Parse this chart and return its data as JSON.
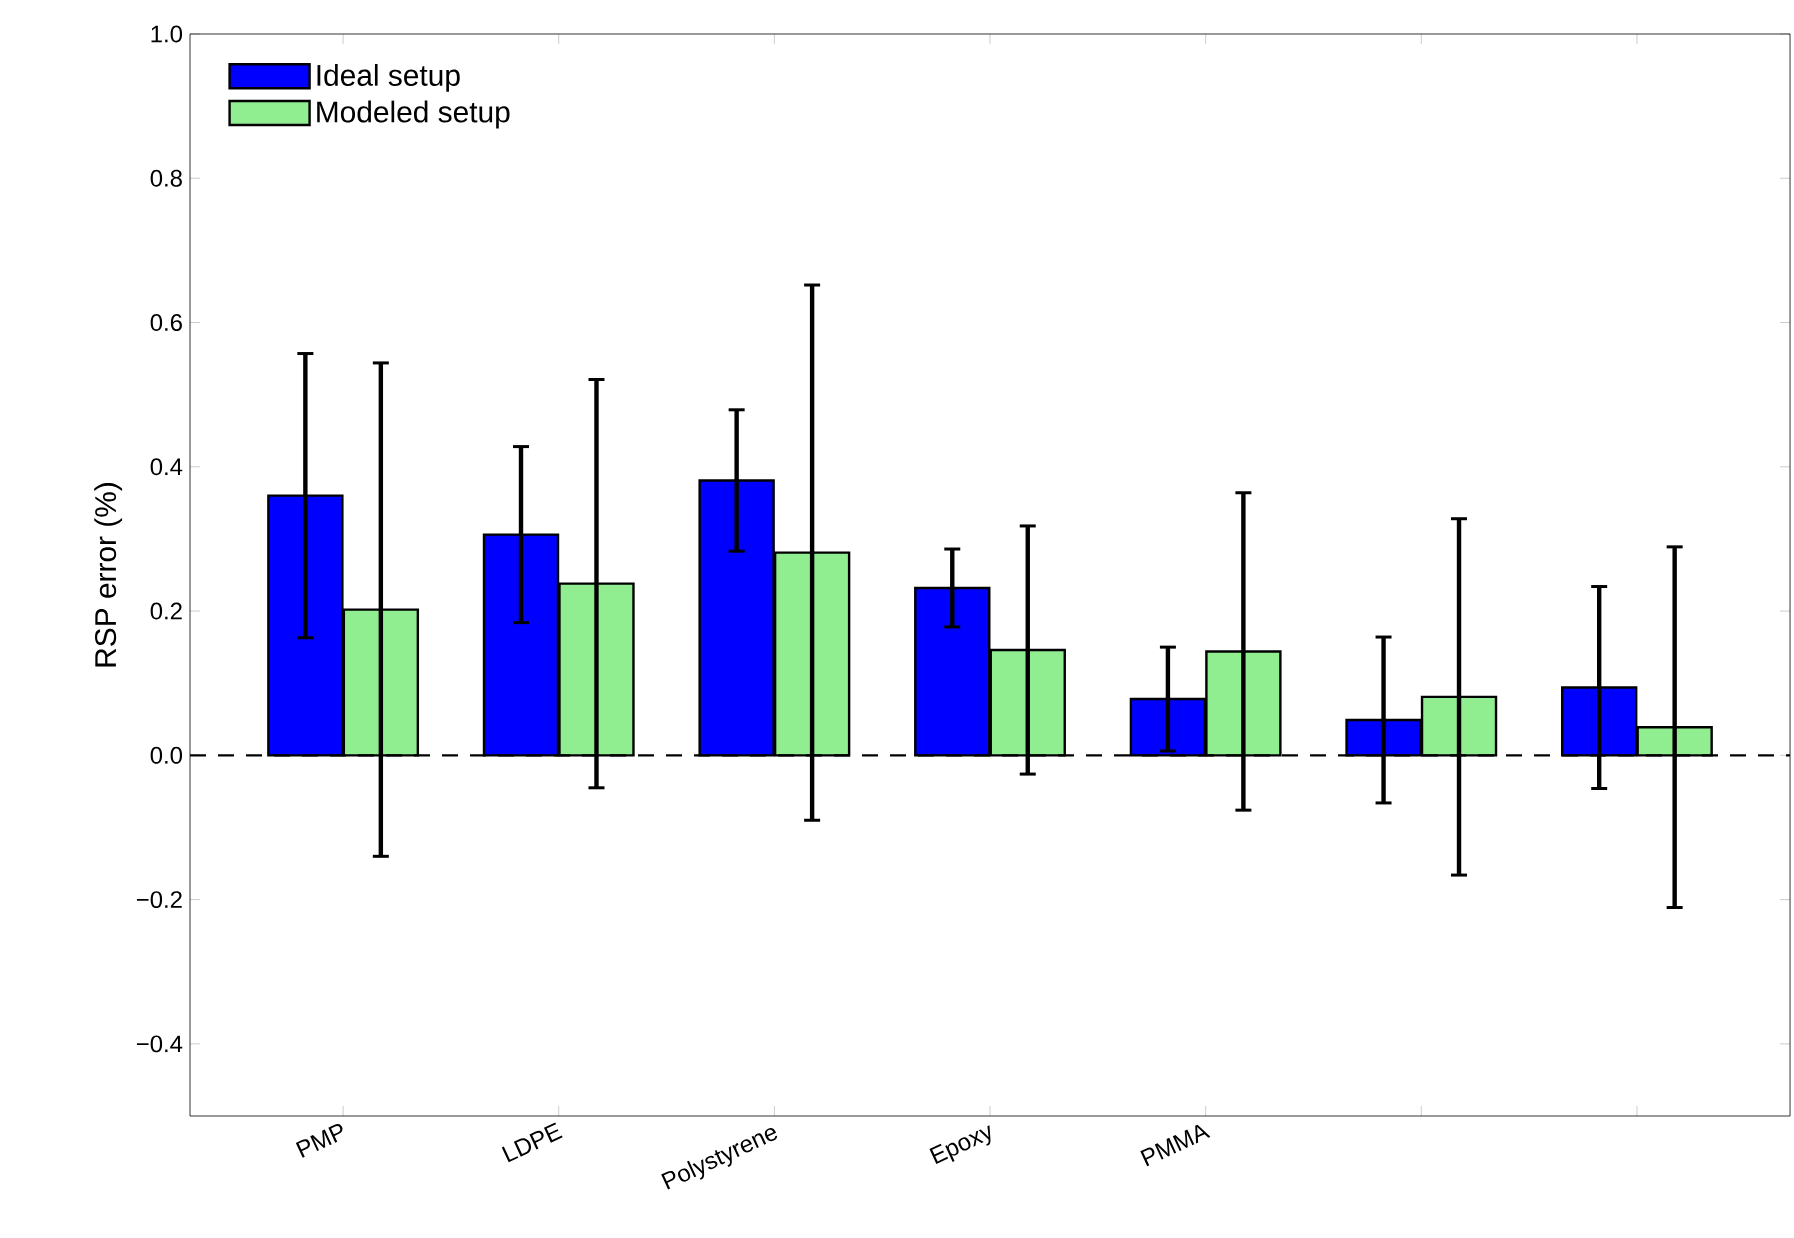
{
  "chart_data": {
    "type": "bar",
    "ylabel": "RSP error (%)",
    "categories": [
      "PMP",
      "LDPE",
      "Polystyrene",
      "Epoxy",
      "PMMA",
      null,
      null
    ],
    "series": [
      {
        "name": "Ideal setup",
        "color": "#0000ff",
        "values": [
          0.36,
          0.306,
          0.381,
          0.232,
          0.078,
          0.049,
          0.094
        ],
        "errors": [
          0.197,
          0.122,
          0.098,
          0.054,
          0.072,
          0.115,
          0.14
        ]
      },
      {
        "name": "Modeled setup",
        "color": "#90ee90",
        "values": [
          0.202,
          0.238,
          0.281,
          0.146,
          0.144,
          0.081,
          0.039
        ],
        "errors": [
          0.342,
          0.283,
          0.371,
          0.172,
          0.22,
          0.247,
          0.25
        ]
      }
    ],
    "ylim": [
      -0.5,
      1.0
    ],
    "yticks": [
      {
        "value": -0.4,
        "label": "−0.4"
      },
      {
        "value": -0.2,
        "label": "−0.2"
      },
      {
        "value": 0.0,
        "label": "0.0"
      },
      {
        "value": 0.2,
        "label": "0.2"
      },
      {
        "value": 0.4,
        "label": "0.4"
      },
      {
        "value": 0.6,
        "label": "0.6"
      },
      {
        "value": 0.8,
        "label": "0.8"
      },
      {
        "value": 1.0,
        "label": "1.0"
      }
    ],
    "ref_lines": [
      {
        "axis": "y",
        "value": 0,
        "line_style": "dashed",
        "color": "#000000"
      }
    ],
    "legend": "top left",
    "grid": false
  }
}
